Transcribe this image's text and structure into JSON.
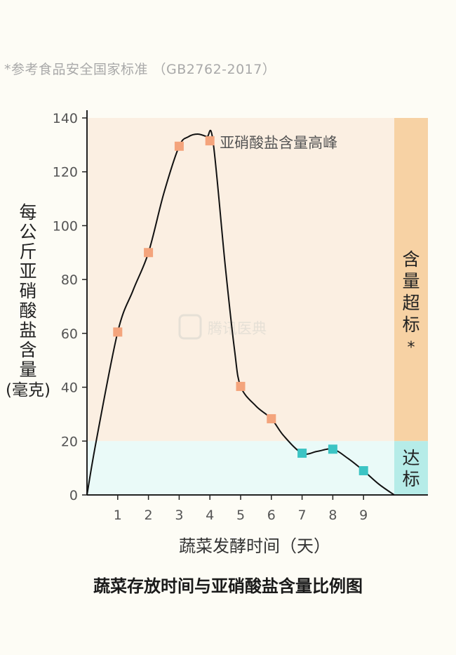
{
  "note": "*参考食品安全国家标准 （GB2762-2017）",
  "caption": "蔬菜存放时间与亚硝酸盐含量比例图",
  "watermark": "腾讯医典",
  "colors": {
    "exceed_band": "#fbefe2",
    "ok_band": "#eafaf8",
    "exceed_bar": "#f7d2a4",
    "ok_bar": "#b6ece8",
    "exceed_marker": "#f4a47c",
    "ok_marker": "#3cc4c4",
    "line": "#111111",
    "axis": "#222222"
  },
  "chart_data": {
    "type": "line",
    "xlabel": "蔬菜发酵时间（天）",
    "ylabel": "每公斤亚硝酸盐含量(毫克)",
    "ylabel_lines": [
      "每",
      "公",
      "斤",
      "亚",
      "硝",
      "酸",
      "盐",
      "含",
      "量",
      "(毫克)"
    ],
    "xlim": [
      0,
      10
    ],
    "ylim": [
      0,
      140
    ],
    "x_ticks": [
      1,
      2,
      3,
      4,
      5,
      6,
      7,
      8,
      9
    ],
    "y_ticks": [
      0,
      20,
      40,
      60,
      80,
      100,
      120,
      140
    ],
    "threshold": 20,
    "peak_label": "亚硝酸盐含量高峰",
    "band_labels": {
      "exceed": "含量超标*",
      "ok": "达标"
    },
    "series": [
      {
        "points": [
          {
            "x": 1,
            "y": 60.5,
            "status": "exceed"
          },
          {
            "x": 2,
            "y": 90,
            "status": "exceed"
          },
          {
            "x": 3,
            "y": 129.5,
            "status": "exceed"
          },
          {
            "x": 4,
            "y": 131.5,
            "status": "exceed"
          },
          {
            "x": 5,
            "y": 40.3,
            "status": "exceed"
          },
          {
            "x": 6,
            "y": 28.3,
            "status": "exceed"
          },
          {
            "x": 7,
            "y": 15.5,
            "status": "ok"
          },
          {
            "x": 8,
            "y": 17,
            "status": "ok"
          },
          {
            "x": 9,
            "y": 9,
            "status": "ok"
          }
        ],
        "curve": [
          [
            0,
            0
          ],
          [
            0.3,
            20
          ],
          [
            1,
            60.5
          ],
          [
            1.5,
            76
          ],
          [
            2,
            90
          ],
          [
            2.5,
            112
          ],
          [
            3,
            129.5
          ],
          [
            3.3,
            133
          ],
          [
            3.6,
            134
          ],
          [
            3.9,
            133
          ],
          [
            4.1,
            131.5
          ],
          [
            4.5,
            85
          ],
          [
            4.8,
            54
          ],
          [
            5,
            40.3
          ],
          [
            5.5,
            33
          ],
          [
            6,
            28.3
          ],
          [
            6.4,
            22
          ],
          [
            7,
            15.5
          ],
          [
            7.5,
            16.2
          ],
          [
            8,
            17
          ],
          [
            8.5,
            13.5
          ],
          [
            9,
            9
          ],
          [
            9.5,
            4
          ],
          [
            10,
            0
          ]
        ]
      }
    ]
  }
}
